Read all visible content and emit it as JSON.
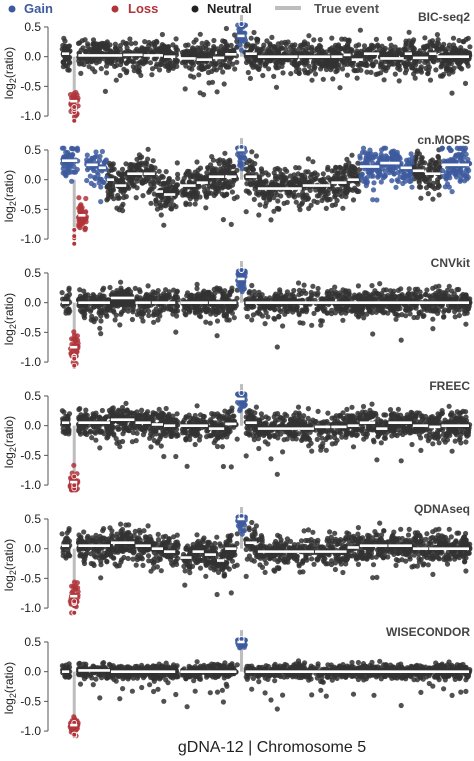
{
  "legend": {
    "items": [
      {
        "label": "Gain",
        "marker": "dot",
        "color": "#3d5a9e"
      },
      {
        "label": "Loss",
        "marker": "dot",
        "color": "#b0353b"
      },
      {
        "label": "Neutral",
        "marker": "dot",
        "color": "#222222"
      },
      {
        "label": "True event",
        "marker": "line",
        "color": "#bdbdbd"
      }
    ]
  },
  "caption": "gDNA-12 | Chromosome 5",
  "colors": {
    "neutral": "#333333",
    "gain": "#3d5a9e",
    "loss": "#b0353b",
    "segment": "#ffffff",
    "true_event": "#bdbdbd",
    "axis": "#555555"
  },
  "chart_data": {
    "type": "scatter",
    "layout": "six stacked panels sharing a chromosome-position x axis",
    "ylabel": "log2(ratio)",
    "yticks": [
      0.5,
      0.0,
      -0.5,
      -1.0
    ],
    "ytick_labels": [
      "0.5",
      "0.0",
      "-0.5",
      "-1.0"
    ],
    "ylim": [
      -1.1,
      0.55
    ],
    "grid": false,
    "legend_position": "top",
    "true_events": [
      {
        "type": "loss",
        "approx_position_fraction": 0.03,
        "approx_log2": -1.0
      },
      {
        "type": "gain",
        "approx_position_fraction": 0.44,
        "approx_log2": 0.7
      }
    ],
    "panels": [
      {
        "title": "BIC-seq2",
        "noise_sd": 0.13,
        "segments": [
          [
            0.0,
            0.02,
            0.05
          ],
          [
            0.02,
            0.04,
            -0.75
          ],
          [
            0.04,
            0.15,
            0.02
          ],
          [
            0.15,
            0.2,
            0.03
          ],
          [
            0.2,
            0.25,
            0.02
          ],
          [
            0.25,
            0.28,
            0.0
          ],
          [
            0.29,
            0.33,
            -0.03
          ],
          [
            0.33,
            0.37,
            -0.05
          ],
          [
            0.37,
            0.4,
            -0.02
          ],
          [
            0.4,
            0.43,
            0.04
          ],
          [
            0.43,
            0.45,
            0.35
          ],
          [
            0.45,
            0.48,
            0.05
          ],
          [
            0.48,
            0.58,
            0.0
          ],
          [
            0.58,
            0.66,
            0.0
          ],
          [
            0.66,
            0.69,
            0.0
          ],
          [
            0.69,
            0.71,
            0.03
          ],
          [
            0.71,
            0.74,
            -0.05
          ],
          [
            0.74,
            0.78,
            0.05
          ],
          [
            0.78,
            0.84,
            -0.03
          ],
          [
            0.84,
            0.86,
            0.05
          ],
          [
            0.86,
            0.9,
            -0.02
          ],
          [
            0.9,
            0.92,
            0.05
          ],
          [
            0.92,
            1.0,
            0.0
          ]
        ],
        "gain_regions": [
          [
            0.43,
            0.45
          ]
        ],
        "loss_regions": [
          [
            0.02,
            0.04
          ]
        ]
      },
      {
        "title": "cn.MOPS",
        "noise_sd": 0.16,
        "segments": [
          [
            0.0,
            0.04,
            0.32
          ],
          [
            0.04,
            0.06,
            -0.6
          ],
          [
            0.06,
            0.09,
            0.25
          ],
          [
            0.09,
            0.11,
            0.2
          ],
          [
            0.11,
            0.13,
            0.0
          ],
          [
            0.13,
            0.16,
            -0.1
          ],
          [
            0.16,
            0.2,
            0.1
          ],
          [
            0.2,
            0.23,
            0.1
          ],
          [
            0.23,
            0.25,
            -0.2
          ],
          [
            0.25,
            0.28,
            -0.25
          ],
          [
            0.29,
            0.33,
            -0.1
          ],
          [
            0.33,
            0.36,
            -0.05
          ],
          [
            0.36,
            0.4,
            0.05
          ],
          [
            0.4,
            0.43,
            0.05
          ],
          [
            0.43,
            0.45,
            0.5
          ],
          [
            0.45,
            0.48,
            0.05
          ],
          [
            0.48,
            0.59,
            -0.15
          ],
          [
            0.59,
            0.66,
            -0.1
          ],
          [
            0.66,
            0.7,
            -0.05
          ],
          [
            0.7,
            0.73,
            0.0
          ],
          [
            0.73,
            0.78,
            0.22
          ],
          [
            0.78,
            0.83,
            0.28
          ],
          [
            0.83,
            0.86,
            0.2
          ],
          [
            0.86,
            0.89,
            0.15
          ],
          [
            0.89,
            0.93,
            0.1
          ],
          [
            0.93,
            1.0,
            0.25
          ]
        ],
        "gain_regions": [
          [
            0.0,
            0.04
          ],
          [
            0.06,
            0.11
          ],
          [
            0.43,
            0.45
          ],
          [
            0.73,
            0.86
          ],
          [
            0.93,
            1.0
          ]
        ],
        "loss_regions": [
          [
            0.04,
            0.06
          ],
          [
            0.8,
            0.82
          ]
        ]
      },
      {
        "title": "CNVkit",
        "noise_sd": 0.11,
        "segments": [
          [
            0.0,
            0.02,
            0.0
          ],
          [
            0.02,
            0.04,
            -0.75
          ],
          [
            0.04,
            0.12,
            0.0
          ],
          [
            0.12,
            0.18,
            0.08
          ],
          [
            0.18,
            0.22,
            0.0
          ],
          [
            0.22,
            0.28,
            0.0
          ],
          [
            0.29,
            0.36,
            0.0
          ],
          [
            0.36,
            0.43,
            0.0
          ],
          [
            0.43,
            0.45,
            0.4
          ],
          [
            0.45,
            1.0,
            0.0
          ]
        ],
        "gain_regions": [
          [
            0.43,
            0.45
          ]
        ],
        "loss_regions": [
          [
            0.02,
            0.04
          ]
        ]
      },
      {
        "title": "FREEC",
        "noise_sd": 0.12,
        "segments": [
          [
            0.0,
            0.02,
            0.05
          ],
          [
            0.02,
            0.04,
            -0.95
          ],
          [
            0.04,
            0.12,
            0.05
          ],
          [
            0.12,
            0.18,
            0.1
          ],
          [
            0.18,
            0.22,
            0.05
          ],
          [
            0.22,
            0.25,
            0.02
          ],
          [
            0.25,
            0.28,
            0.0
          ],
          [
            0.29,
            0.36,
            0.0
          ],
          [
            0.36,
            0.4,
            -0.05
          ],
          [
            0.4,
            0.43,
            0.03
          ],
          [
            0.43,
            0.45,
            0.45
          ],
          [
            0.45,
            0.48,
            0.05
          ],
          [
            0.48,
            0.62,
            -0.05
          ],
          [
            0.62,
            0.66,
            -0.02
          ],
          [
            0.66,
            0.7,
            -0.02
          ],
          [
            0.7,
            0.73,
            0.0
          ],
          [
            0.73,
            0.77,
            0.05
          ],
          [
            0.77,
            0.8,
            -0.05
          ],
          [
            0.8,
            0.86,
            0.05
          ],
          [
            0.86,
            0.9,
            0.0
          ],
          [
            0.9,
            0.93,
            -0.02
          ],
          [
            0.93,
            1.0,
            0.0
          ]
        ],
        "gain_regions": [
          [
            0.43,
            0.45
          ]
        ],
        "loss_regions": [
          [
            0.02,
            0.04
          ]
        ]
      },
      {
        "title": "QDNAseq",
        "noise_sd": 0.13,
        "segments": [
          [
            0.0,
            0.02,
            0.05
          ],
          [
            0.02,
            0.04,
            -0.8
          ],
          [
            0.04,
            0.12,
            0.05
          ],
          [
            0.12,
            0.18,
            0.1
          ],
          [
            0.18,
            0.22,
            0.05
          ],
          [
            0.22,
            0.25,
            0.0
          ],
          [
            0.25,
            0.28,
            -0.05
          ],
          [
            0.29,
            0.32,
            -0.15
          ],
          [
            0.32,
            0.35,
            -0.05
          ],
          [
            0.35,
            0.38,
            -0.1
          ],
          [
            0.38,
            0.4,
            -0.2
          ],
          [
            0.4,
            0.43,
            0.0
          ],
          [
            0.43,
            0.45,
            0.5
          ],
          [
            0.45,
            0.48,
            0.1
          ],
          [
            0.48,
            0.62,
            -0.05
          ],
          [
            0.62,
            0.7,
            -0.05
          ],
          [
            0.7,
            0.73,
            0.02
          ],
          [
            0.73,
            0.8,
            0.05
          ],
          [
            0.8,
            0.86,
            0.05
          ],
          [
            0.86,
            0.9,
            0.0
          ],
          [
            0.9,
            1.0,
            0.0
          ]
        ],
        "gain_regions": [
          [
            0.43,
            0.45
          ]
        ],
        "loss_regions": [
          [
            0.02,
            0.04
          ]
        ]
      },
      {
        "title": "WISECONDOR",
        "noise_sd": 0.06,
        "segments": [
          [
            0.0,
            0.02,
            0.0
          ],
          [
            0.02,
            0.04,
            -0.9
          ],
          [
            0.04,
            0.12,
            0.02
          ],
          [
            0.12,
            0.28,
            0.0
          ],
          [
            0.29,
            0.43,
            0.0
          ],
          [
            0.43,
            0.45,
            0.5
          ],
          [
            0.45,
            1.0,
            0.0
          ]
        ],
        "gain_regions": [
          [
            0.43,
            0.45
          ]
        ],
        "loss_regions": [
          [
            0.02,
            0.04
          ]
        ]
      }
    ]
  }
}
